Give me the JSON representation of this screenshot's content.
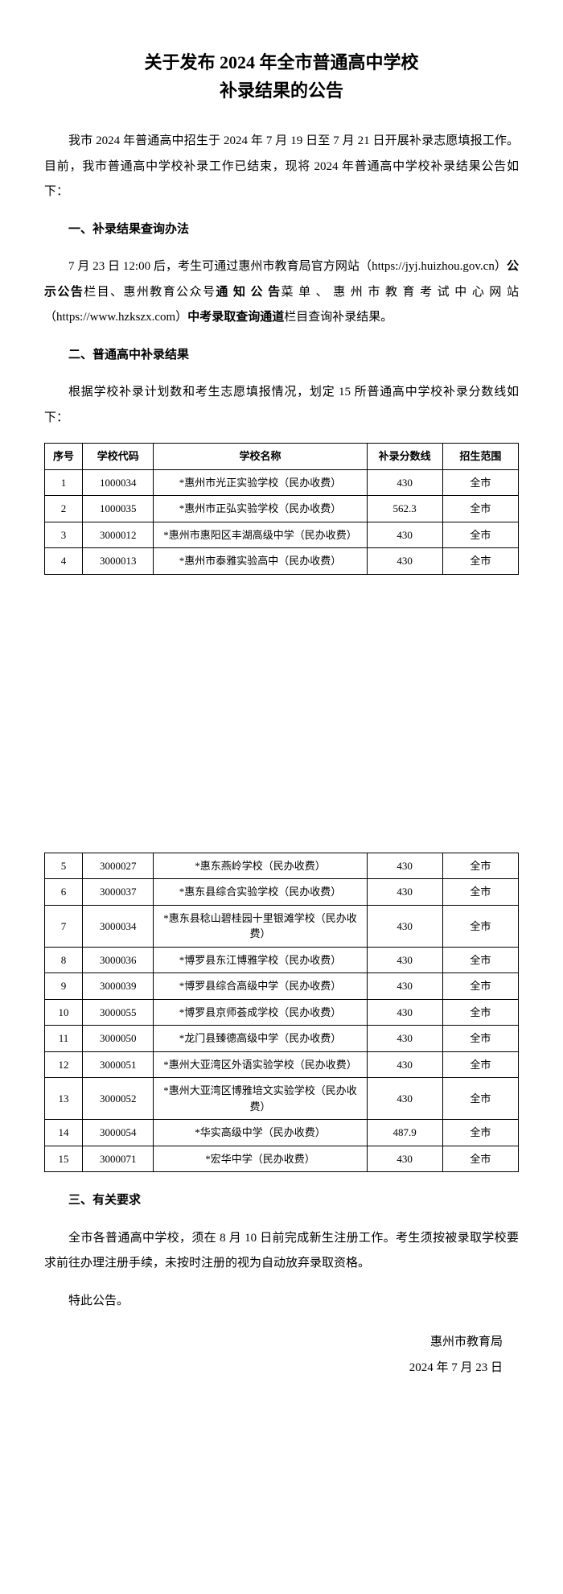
{
  "title_line1": "关于发布 2024 年全市普通高中学校",
  "title_line2": "补录结果的公告",
  "para1_a": "我市 2024 年普通高中招生于 2024 年 7 月 19 日至 7 月 21 日开展补录志愿填报工作。目前，我市普通高中学校补录工作已结束，现将 2024 年普通高中学校补录结果公告如下：",
  "section1_head": "一、补录结果查询办法",
  "section1_p1_a": "7 月 23 日 12:00 后，考生可通过惠州市教育局官方网站（https://jyj.huizhou.gov.cn）",
  "section1_p1_b": "公示公告",
  "section1_p1_c": "栏目、惠州教育公众号",
  "section1_p1_d": "通 知 公 告",
  "section1_p1_e": "菜 单 、 惠 州 市 教 育 考 试 中 心 网 站（https://www.hzkszx.com）",
  "section1_p1_f": "中考录取查询通道",
  "section1_p1_g": "栏目查询补录结果。",
  "section2_head": "二、普通高中补录结果",
  "section2_p1": "根据学校补录计划数和考生志愿填报情况，划定 15 所普通高中学校补录分数线如下：",
  "table_headers": {
    "seq": "序号",
    "code": "学校代码",
    "name": "学校名称",
    "score": "补录分数线",
    "scope": "招生范围"
  },
  "rows_top": [
    {
      "seq": "1",
      "code": "1000034",
      "name": "*惠州市光正实验学校（民办收费）",
      "score": "430",
      "scope": "全市"
    },
    {
      "seq": "2",
      "code": "1000035",
      "name": "*惠州市正弘实验学校（民办收费）",
      "score": "562.3",
      "scope": "全市"
    },
    {
      "seq": "3",
      "code": "3000012",
      "name": "*惠州市惠阳区丰湖高级中学（民办收费）",
      "score": "430",
      "scope": "全市"
    },
    {
      "seq": "4",
      "code": "3000013",
      "name": "*惠州市泰雅实验高中（民办收费）",
      "score": "430",
      "scope": "全市"
    }
  ],
  "rows_bottom": [
    {
      "seq": "5",
      "code": "3000027",
      "name": "*惠东燕岭学校（民办收费）",
      "score": "430",
      "scope": "全市"
    },
    {
      "seq": "6",
      "code": "3000037",
      "name": "*惠东县综合实验学校（民办收费）",
      "score": "430",
      "scope": "全市"
    },
    {
      "seq": "7",
      "code": "3000034",
      "name": "*惠东县稔山碧桂园十里银滩学校（民办收费）",
      "score": "430",
      "scope": "全市"
    },
    {
      "seq": "8",
      "code": "3000036",
      "name": "*博罗县东江博雅学校（民办收费）",
      "score": "430",
      "scope": "全市"
    },
    {
      "seq": "9",
      "code": "3000039",
      "name": "*博罗县综合高级中学（民办收费）",
      "score": "430",
      "scope": "全市"
    },
    {
      "seq": "10",
      "code": "3000055",
      "name": "*博罗县京师荟成学校（民办收费）",
      "score": "430",
      "scope": "全市"
    },
    {
      "seq": "11",
      "code": "3000050",
      "name": "*龙门县臻德高级中学（民办收费）",
      "score": "430",
      "scope": "全市"
    },
    {
      "seq": "12",
      "code": "3000051",
      "name": "*惠州大亚湾区外语实验学校（民办收费）",
      "score": "430",
      "scope": "全市"
    },
    {
      "seq": "13",
      "code": "3000052",
      "name": "*惠州大亚湾区博雅培文实验学校（民办收费）",
      "score": "430",
      "scope": "全市"
    },
    {
      "seq": "14",
      "code": "3000054",
      "name": "*华实高级中学（民办收费）",
      "score": "487.9",
      "scope": "全市"
    },
    {
      "seq": "15",
      "code": "3000071",
      "name": "*宏华中学（民办收费）",
      "score": "430",
      "scope": "全市"
    }
  ],
  "section3_head": "三、有关要求",
  "section3_p1": "全市各普通高中学校，须在 8 月 10 日前完成新生注册工作。考生须按被录取学校要求前往办理注册手续，未按时注册的视为自动放弃录取资格。",
  "closing": "特此公告。",
  "issuer": "惠州市教育局",
  "date": "2024 年 7 月 23 日"
}
